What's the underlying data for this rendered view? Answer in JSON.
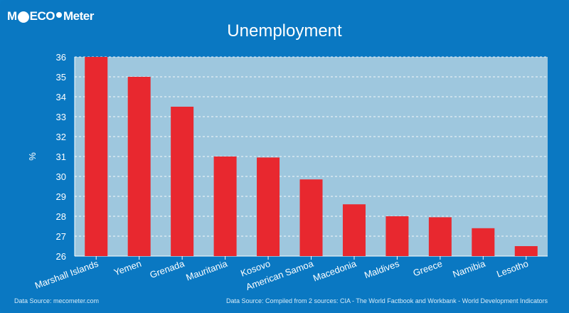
{
  "brand": {
    "name": "MECOMeter",
    "logo_text": [
      "M",
      "ECO",
      " Meter"
    ]
  },
  "footer": {
    "left": "Data Source: mecometer.com",
    "right": "Data Source: Compiled from 2 sources: CIA - The World Factbook and Workbank - World Development Indicators"
  },
  "colors": {
    "background": "#0a78c2",
    "plot_bg": "#9ec7de",
    "bar": "#e8282f",
    "grid": "#ffffff"
  },
  "chart_data": {
    "type": "bar",
    "title": "Unemployment",
    "xlabel": "",
    "ylabel": "%",
    "ylim": [
      26,
      36
    ],
    "yticks": [
      "26",
      "27",
      "28",
      "29",
      "30",
      "31",
      "32",
      "33",
      "34",
      "35",
      "36"
    ],
    "grid": true,
    "categories": [
      "Marshall Islands",
      "Yemen",
      "Grenada",
      "Mauritania",
      "Kosovo",
      "American Samoa",
      "Macedonia",
      "Maldives",
      "Greece",
      "Namibia",
      "Lesotho"
    ],
    "values": [
      36,
      35,
      33.5,
      31,
      30.95,
      29.85,
      28.6,
      28,
      27.95,
      27.4,
      26.5
    ]
  }
}
